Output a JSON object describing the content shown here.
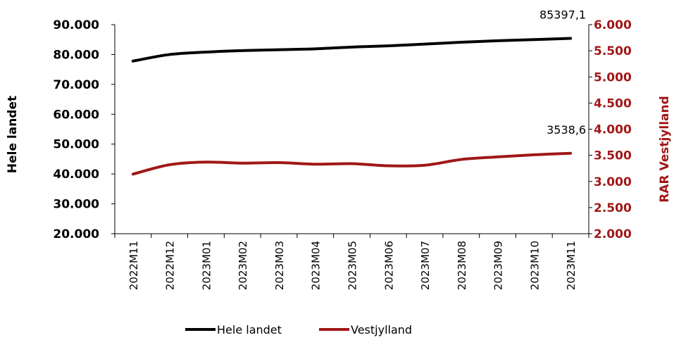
{
  "chart_data": {
    "type": "line",
    "categories": [
      "2022M11",
      "2022M12",
      "2023M01",
      "2023M02",
      "2023M03",
      "2023M04",
      "2023M05",
      "2023M06",
      "2023M07",
      "2023M08",
      "2023M09",
      "2023M10",
      "2023M11"
    ],
    "series": [
      {
        "name": "Hele landet",
        "axis": "left",
        "color": "#000000",
        "values": [
          77800,
          80000,
          80800,
          81300,
          81600,
          81900,
          82500,
          82900,
          83500,
          84100,
          84600,
          85000,
          85397.1
        ]
      },
      {
        "name": "Vestjylland",
        "axis": "right",
        "color": "#a01818",
        "values": [
          3140,
          3320,
          3370,
          3350,
          3360,
          3330,
          3340,
          3300,
          3310,
          3420,
          3470,
          3510,
          3538.6
        ]
      }
    ],
    "left_axis": {
      "title": "Hele landet",
      "ylim": [
        20000,
        90000
      ],
      "ticks": [
        "20.000",
        "30.000",
        "40.000",
        "50.000",
        "60.000",
        "70.000",
        "80.000",
        "90.000"
      ]
    },
    "right_axis": {
      "title": "RAR Vestjylland",
      "ylim": [
        2000,
        6000
      ],
      "ticks": [
        "2.000",
        "2.500",
        "3.000",
        "3.500",
        "4.000",
        "4.500",
        "5.000",
        "5.500",
        "6.000"
      ],
      "color": "#a01818"
    },
    "data_labels": [
      {
        "series": "Hele landet",
        "text": "85397,1"
      },
      {
        "series": "Vestjylland",
        "text": "3538,6"
      }
    ],
    "legend": {
      "position": "bottom",
      "entries": [
        "Hele landet",
        "Vestjylland"
      ]
    },
    "grid": false
  }
}
